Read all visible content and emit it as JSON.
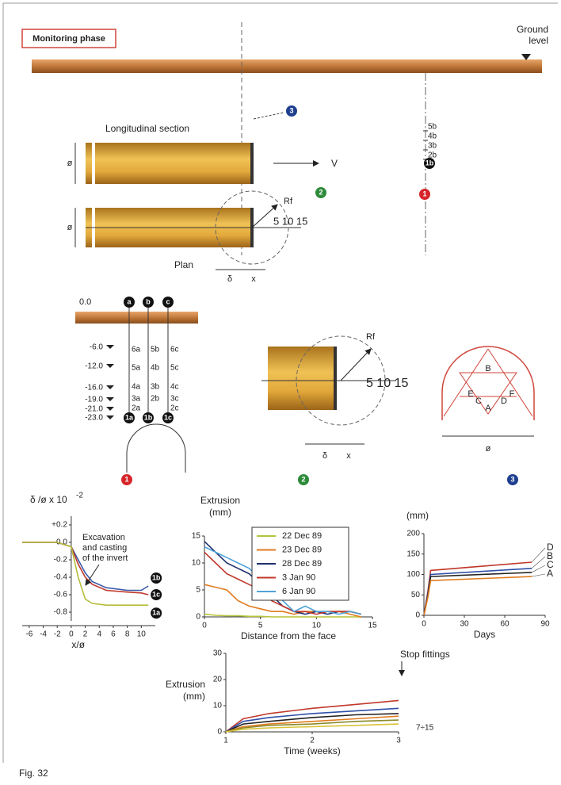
{
  "header": {
    "title": "Monitoring phase",
    "ground_label": "Ground level",
    "caption": "Fig. 32"
  },
  "diagram": {
    "section_label": "Longitudinal section",
    "plan_label": "Plan",
    "diameter": "ø",
    "velocity": "V",
    "radius": "Rf",
    "scale": "5 10 15",
    "delta": "δ",
    "x": "x",
    "markers": [
      "1",
      "2",
      "3"
    ],
    "top_extensometer": [
      "5b",
      "4b",
      "3b",
      "2b"
    ],
    "top_anchor": "1b",
    "ground_zero": "0.0",
    "borehole_heads": [
      "a",
      "b",
      "c"
    ],
    "depths": [
      "-6.0",
      "-12.0",
      "-16.0",
      "-19.0",
      "-21.0",
      "-23.0"
    ],
    "sensor_columns": {
      "a": [
        "6a",
        "5a",
        "4a",
        "3a",
        "2a"
      ],
      "b": [
        "5b",
        "4b",
        "3b",
        "2b"
      ],
      "c": [
        "6c",
        "5c",
        "4c",
        "3c",
        "2c"
      ]
    },
    "bottom_anchors": [
      "1a",
      "1b",
      "1c"
    ],
    "section_points": [
      "B",
      "E",
      "C",
      "A",
      "D",
      "F"
    ]
  },
  "chart_data": [
    {
      "type": "line",
      "ylabel": "δ /ø x 10",
      "ylabel_exponent": "-2",
      "xlabel": "x/ø",
      "annotation": [
        "Excavation",
        "and casting",
        "of the invert"
      ],
      "x": [
        -7,
        -2,
        0,
        1,
        2,
        3,
        5,
        8,
        10,
        11
      ],
      "xlim": [
        -7,
        12
      ],
      "xticks": [
        -6,
        -4,
        -2,
        0,
        2,
        4,
        6,
        8,
        10
      ],
      "ylim": [
        -0.9,
        0.3
      ],
      "yticks": [
        {
          "value": 0.2,
          "label": "+0.2"
        },
        {
          "value": 0,
          "label": "0.0"
        },
        -0.2,
        -0.4,
        -0.6,
        -0.8
      ],
      "series": [
        {
          "name": "1b",
          "color": "#3b5aa8",
          "values": [
            0,
            0,
            -0.05,
            -0.2,
            -0.35,
            -0.45,
            -0.52,
            -0.55,
            -0.55,
            -0.5
          ]
        },
        {
          "name": "1c",
          "color": "#c0392b",
          "values": [
            0,
            0,
            -0.05,
            -0.25,
            -0.4,
            -0.48,
            -0.55,
            -0.57,
            -0.58,
            -0.6
          ]
        },
        {
          "name": "1a",
          "color": "#b5bd3a",
          "values": [
            0,
            0,
            -0.05,
            -0.4,
            -0.65,
            -0.7,
            -0.72,
            -0.72,
            -0.72,
            -0.72
          ]
        }
      ]
    },
    {
      "type": "line",
      "ylabel": [
        "Extrusion",
        "(mm)"
      ],
      "xlabel": "Distance from the face",
      "x": [
        0,
        1,
        2,
        3,
        4,
        5,
        6,
        7,
        8,
        9,
        10,
        11,
        12,
        13,
        14
      ],
      "xlim": [
        0,
        15
      ],
      "xticks": [
        0,
        5,
        10,
        15
      ],
      "ylim": [
        0,
        15
      ],
      "yticks": [
        0,
        5,
        10,
        15
      ],
      "series": [
        {
          "name": "22 Dec 89",
          "color": "#b5c43a",
          "values": [
            0.5,
            0.3,
            0.2,
            0.2,
            0.1,
            0.1,
            0,
            0,
            0,
            0,
            0,
            0,
            0,
            0,
            0
          ]
        },
        {
          "name": "23 Dec 89",
          "color": "#e07b1f",
          "values": [
            6,
            5.5,
            5,
            3,
            2,
            1.5,
            1,
            1,
            0.5,
            1,
            1,
            1,
            1,
            0.5,
            0
          ]
        },
        {
          "name": "28 Dec 89",
          "color": "#1f2f6e",
          "values": [
            14,
            12,
            10,
            9,
            8,
            6,
            4,
            2,
            1,
            0.5,
            1,
            0.5,
            1,
            1,
            0.5
          ]
        },
        {
          "name": "3 Jan 90",
          "color": "#c0392b",
          "values": [
            12,
            10,
            8,
            7,
            6,
            5,
            3,
            2,
            1,
            1,
            0.5,
            1,
            1,
            1,
            0.5
          ]
        },
        {
          "name": "6 Jan 90",
          "color": "#4fa3d9",
          "values": [
            13,
            12,
            11,
            10,
            9,
            7,
            5,
            3,
            1,
            2,
            1,
            1,
            0.5,
            1,
            0.5
          ]
        }
      ]
    },
    {
      "type": "line",
      "ylabel": "(mm)",
      "xlabel": "Days",
      "x": [
        0,
        3,
        5,
        80
      ],
      "xlim": [
        0,
        90
      ],
      "xticks": [
        0,
        30,
        60,
        90
      ],
      "ylim": [
        0,
        200
      ],
      "yticks": [
        0,
        50,
        100,
        150,
        200
      ],
      "series": [
        {
          "name": "D",
          "color": "#c0392b",
          "values": [
            0,
            60,
            110,
            130
          ]
        },
        {
          "name": "B",
          "color": "#2f4fa8",
          "values": [
            0,
            55,
            100,
            115
          ]
        },
        {
          "name": "C",
          "color": "#222222",
          "values": [
            0,
            50,
            95,
            105
          ]
        },
        {
          "name": "A",
          "color": "#e07b1f",
          "values": [
            0,
            45,
            85,
            95
          ]
        }
      ]
    },
    {
      "type": "line",
      "ylabel": [
        "Extrusion",
        "(mm)"
      ],
      "xlabel": "Time (weeks)",
      "annotation": "Stop fittings",
      "end_note": "7÷15",
      "x": [
        1,
        1.2,
        1.5,
        2,
        2.5,
        3
      ],
      "xlim": [
        1,
        3
      ],
      "xticks": [
        1,
        2,
        3
      ],
      "ylim": [
        0,
        30
      ],
      "yticks": [
        0,
        10,
        20,
        30
      ],
      "series": [
        {
          "color": "#c0392b",
          "values": [
            0,
            5,
            7,
            9,
            10.5,
            12
          ]
        },
        {
          "color": "#2f4fa8",
          "values": [
            0,
            4,
            5.5,
            7,
            8,
            9
          ]
        },
        {
          "color": "#222222",
          "values": [
            0,
            3,
            4,
            5.5,
            6.5,
            7
          ]
        },
        {
          "color": "#e07b1f",
          "values": [
            0,
            2,
            3,
            4,
            5,
            6
          ]
        },
        {
          "color": "#8a8a2a",
          "values": [
            0,
            1.5,
            2.5,
            3,
            4,
            4.5
          ]
        },
        {
          "color": "#d8c33a",
          "values": [
            0,
            1,
            1.5,
            2,
            2.5,
            3
          ]
        }
      ]
    }
  ]
}
